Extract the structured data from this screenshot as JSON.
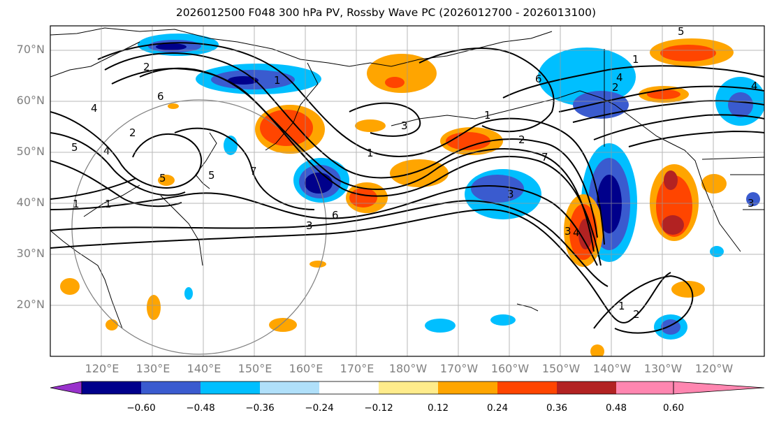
{
  "title": "2026012500 F048 300 hPa PV, Rossby Wave PC (2026012700 - 2026013100)",
  "lat_labels": [
    "70°N",
    "60°N",
    "50°N",
    "40°N",
    "30°N",
    "20°N"
  ],
  "lon_labels": [
    "120°E",
    "130°E",
    "140°E",
    "150°E",
    "160°E",
    "170°E",
    "180°W",
    "170°W",
    "160°W",
    "150°W",
    "140°W",
    "130°W",
    "120°W"
  ],
  "colorbar": {
    "tick_labels": [
      "−0.60",
      "−0.48",
      "−0.36",
      "−0.24",
      "−0.12",
      "0.12",
      "0.24",
      "0.36",
      "0.48",
      "0.60"
    ],
    "colors": [
      "#9932cc",
      "#00008b",
      "#3a5bcf",
      "#00bfff",
      "#b0e0fa",
      "#ffffff",
      "#ffec8b",
      "#ffa500",
      "#ff4500",
      "#b22222",
      "#ff86b0"
    ]
  },
  "contour_labels": [
    "2",
    "6",
    "4",
    "5",
    "4",
    "2",
    "1",
    "1",
    "5",
    "1",
    "3",
    "7",
    "5",
    "3",
    "6",
    "3",
    "1",
    "2",
    "3",
    "7",
    "4",
    "4",
    "3",
    "1",
    "1",
    "6",
    "2",
    "4",
    "1",
    "2",
    "5"
  ]
}
